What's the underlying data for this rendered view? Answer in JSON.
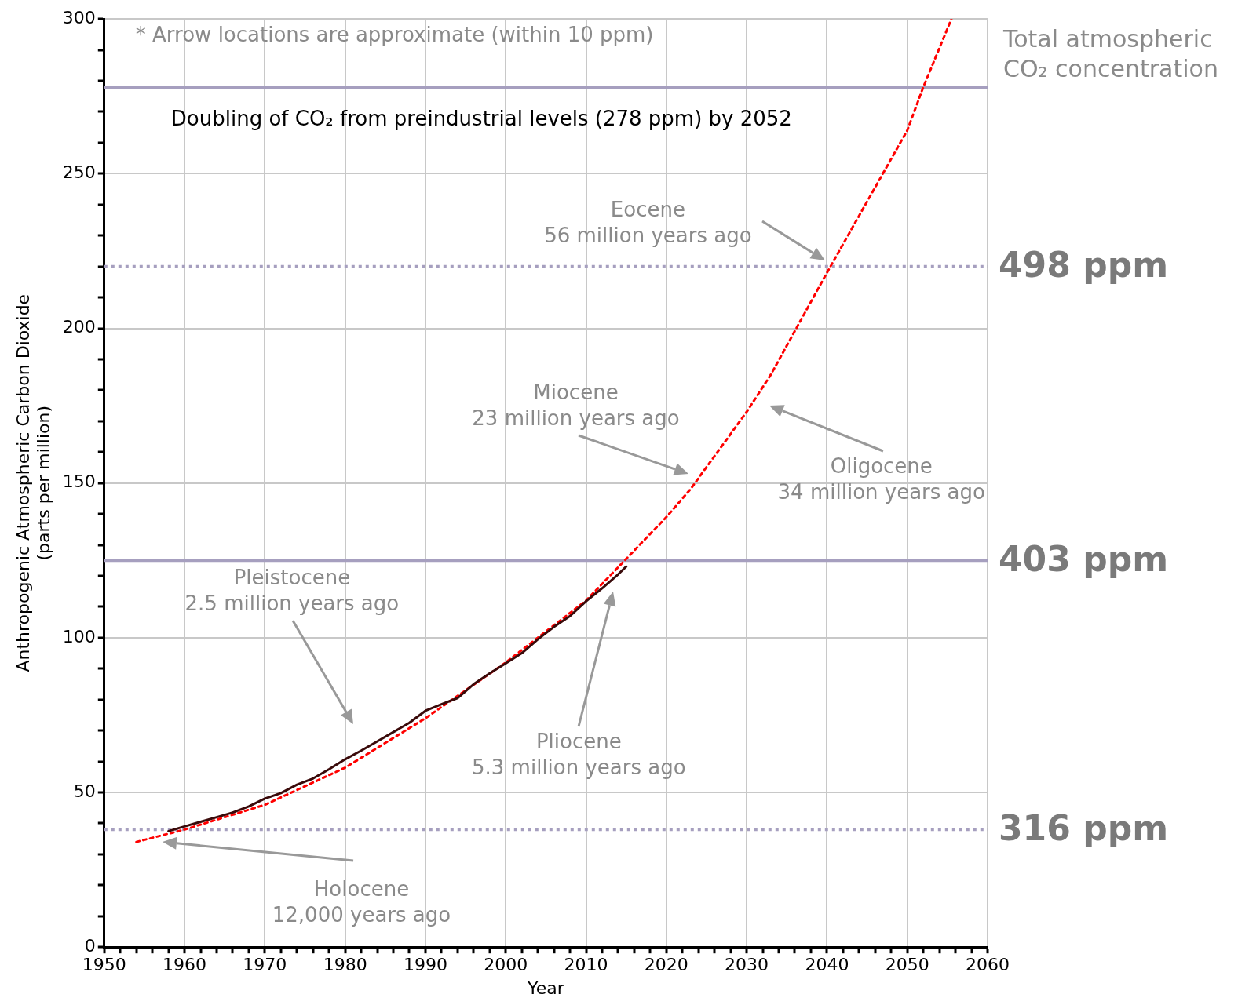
{
  "chart_data": {
    "type": "line",
    "xlabel": "Year",
    "ylabel": "Anthropogenic Atmospheric Carbon Dioxide\n(parts per million)",
    "series": [
      {
        "color": "#3a0a0a",
        "line_style": "solid",
        "x": [
          1958,
          1960,
          1962,
          1964,
          1966,
          1968,
          1970,
          1972,
          1974,
          1976,
          1978,
          1980,
          1982,
          1984,
          1986,
          1988,
          1990,
          1992,
          1994,
          1996,
          1998,
          2000,
          2002,
          2004,
          2006,
          2008,
          2010,
          2012,
          2014,
          2015
        ],
        "values": [
          37.5,
          39,
          40.5,
          42,
          43.5,
          45.5,
          48,
          49.8,
          52.5,
          54.5,
          57.5,
          60.7,
          63.5,
          66.5,
          69.5,
          72.5,
          76.4,
          78.5,
          80.5,
          85,
          88.5,
          91.7,
          95,
          99.5,
          103.5,
          107,
          111.8,
          116,
          120.5,
          123
        ]
      },
      {
        "color": "#ff0000",
        "line_style": "dotted",
        "x": [
          1954,
          1960,
          1970,
          1980,
          1990,
          2000,
          2010,
          2020,
          2023,
          2030,
          2033,
          2040,
          2050,
          2052,
          2055.5
        ],
        "values": [
          34,
          38,
          46,
          58,
          74,
          92,
          112,
          139,
          148,
          173,
          185,
          218,
          264,
          278,
          300
        ]
      }
    ],
    "marker": "none",
    "xlim": [
      1950,
      2060
    ],
    "ylim": [
      0,
      300
    ],
    "xticks": [
      1950,
      {
        "value": 1952,
        "label": null
      },
      {
        "value": 1954,
        "label": null
      },
      {
        "value": 1956,
        "label": null
      },
      {
        "value": 1958,
        "label": null
      },
      1960,
      {
        "value": 1962,
        "label": null
      },
      {
        "value": 1964,
        "label": null
      },
      {
        "value": 1966,
        "label": null
      },
      {
        "value": 1968,
        "label": null
      },
      1970,
      {
        "value": 1972,
        "label": null
      },
      {
        "value": 1974,
        "label": null
      },
      {
        "value": 1976,
        "label": null
      },
      {
        "value": 1978,
        "label": null
      },
      1980,
      {
        "value": 1982,
        "label": null
      },
      {
        "value": 1984,
        "label": null
      },
      {
        "value": 1986,
        "label": null
      },
      {
        "value": 1988,
        "label": null
      },
      1990,
      {
        "value": 1992,
        "label": null
      },
      {
        "value": 1994,
        "label": null
      },
      {
        "value": 1996,
        "label": null
      },
      {
        "value": 1998,
        "label": null
      },
      2000,
      {
        "value": 2002,
        "label": null
      },
      {
        "value": 2004,
        "label": null
      },
      {
        "value": 2006,
        "label": null
      },
      {
        "value": 2008,
        "label": null
      },
      2010,
      {
        "value": 2012,
        "label": null
      },
      {
        "value": 2014,
        "label": null
      },
      {
        "value": 2016,
        "label": null
      },
      {
        "value": 2018,
        "label": null
      },
      2020,
      {
        "value": 2022,
        "label": null
      },
      {
        "value": 2024,
        "label": null
      },
      {
        "value": 2026,
        "label": null
      },
      {
        "value": 2028,
        "label": null
      },
      2030,
      {
        "value": 2032,
        "label": null
      },
      {
        "value": 2034,
        "label": null
      },
      {
        "value": 2036,
        "label": null
      },
      {
        "value": 2038,
        "label": null
      },
      2040,
      {
        "value": 2042,
        "label": null
      },
      {
        "value": 2044,
        "label": null
      },
      {
        "value": 2046,
        "label": null
      },
      {
        "value": 2048,
        "label": null
      },
      2050,
      {
        "value": 2052,
        "label": null
      },
      {
        "value": 2054,
        "label": null
      },
      {
        "value": 2056,
        "label": null
      },
      {
        "value": 2058,
        "label": null
      },
      2060
    ],
    "yticks": [
      0,
      {
        "value": 10,
        "label": null
      },
      {
        "value": 20,
        "label": null
      },
      {
        "value": 30,
        "label": null
      },
      {
        "value": 40,
        "label": null
      },
      50,
      {
        "value": 60,
        "label": null
      },
      {
        "value": 70,
        "label": null
      },
      {
        "value": 80,
        "label": null
      },
      {
        "value": 90,
        "label": null
      },
      100,
      {
        "value": 110,
        "label": null
      },
      {
        "value": 120,
        "label": null
      },
      {
        "value": 130,
        "label": null
      },
      {
        "value": 140,
        "label": null
      },
      150,
      {
        "value": 160,
        "label": null
      },
      {
        "value": 170,
        "label": null
      },
      {
        "value": 180,
        "label": null
      },
      {
        "value": 190,
        "label": null
      },
      200,
      {
        "value": 210,
        "label": null
      },
      {
        "value": 220,
        "label": null
      },
      {
        "value": 230,
        "label": null
      },
      {
        "value": 240,
        "label": null
      },
      250,
      {
        "value": 260,
        "label": null
      },
      {
        "value": 270,
        "label": null
      },
      {
        "value": 280,
        "label": null
      },
      {
        "value": 290,
        "label": null
      },
      300
    ],
    "grid": true,
    "legend": false,
    "ref_lines": [
      {
        "axis": "y",
        "value": 278,
        "label": "Doubling of CO₂ from preindustrial levels (278 ppm) by 2052",
        "color": "#a69fbf",
        "line_style": "solid"
      },
      {
        "axis": "y",
        "value": 220,
        "label": "498 ppm",
        "color": "#a69fbf",
        "line_style": "dotted"
      },
      {
        "axis": "y",
        "value": 125,
        "label": "403 ppm",
        "color": "#a69fbf",
        "line_style": "solid"
      },
      {
        "axis": "y",
        "value": 38,
        "label": "316 ppm",
        "color": "#a69fbf",
        "line_style": "dotted"
      }
    ],
    "annotations": [
      "* Arrow locations are approximate (within 10 ppm)",
      "Total atmospheric\nCO₂ concentration",
      "Holocene\n12,000 years ago",
      "Pleistocene\n2.5 million years ago",
      "Pliocene\n5.3 million years ago",
      "Miocene\n23 million years ago",
      "Oligocene\n34 million years ago",
      "Eocene\n56 million years ago"
    ]
  }
}
